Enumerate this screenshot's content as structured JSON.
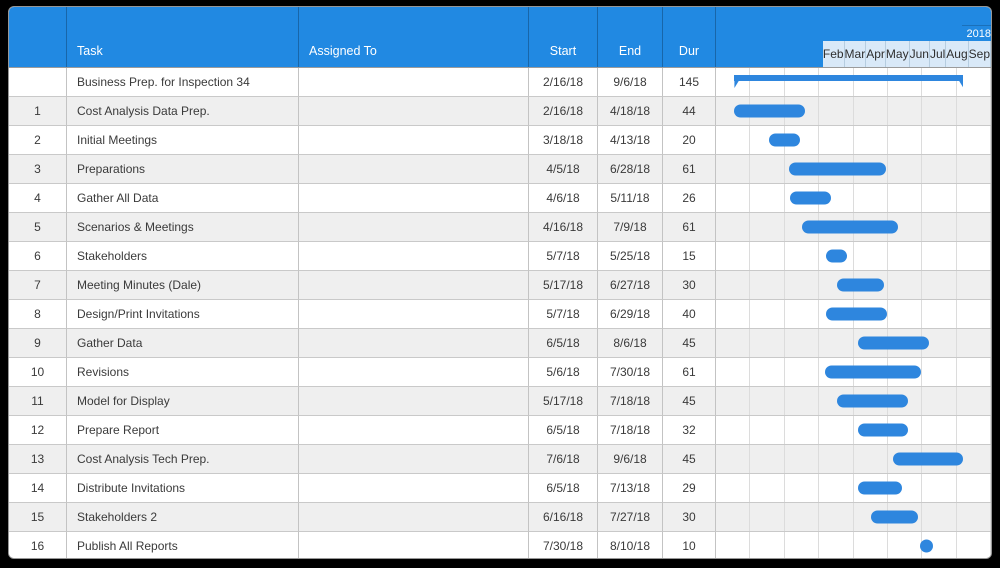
{
  "colors": {
    "header_blue": "#2189e2",
    "month_row_blue": "#d9e9f8",
    "bar_blue": "#2e86de",
    "alt_row_gray": "#efefef",
    "frame_black": "#000000"
  },
  "header": {
    "columns": {
      "num": "",
      "task": "Task",
      "assigned": "Assigned To",
      "start": "Start",
      "end": "End",
      "dur": "Dur"
    },
    "timeline": {
      "year": "2018",
      "months": [
        "Feb",
        "Mar",
        "Apr",
        "May",
        "Jun",
        "Jul",
        "Aug",
        "Sep"
      ]
    }
  },
  "chart_data": {
    "type": "gantt",
    "title": "Business Prep. for Inspection 34",
    "year": 2018,
    "timeline_months": [
      "Feb",
      "Mar",
      "Apr",
      "May",
      "Jun",
      "Jul",
      "Aug",
      "Sep"
    ],
    "tasks": [
      {
        "num": "",
        "task": "Business Prep. for Inspection 34",
        "assigned": "",
        "start": "2/16/18",
        "end": "9/6/18",
        "dur": "145",
        "kind": "summary"
      },
      {
        "num": "1",
        "task": "Cost Analysis Data Prep.",
        "assigned": "",
        "start": "2/16/18",
        "end": "4/18/18",
        "dur": "44",
        "kind": "task"
      },
      {
        "num": "2",
        "task": "Initial Meetings",
        "assigned": "",
        "start": "3/18/18",
        "end": "4/13/18",
        "dur": "20",
        "kind": "task"
      },
      {
        "num": "3",
        "task": "Preparations",
        "assigned": "",
        "start": "4/5/18",
        "end": "6/28/18",
        "dur": "61",
        "kind": "task"
      },
      {
        "num": "4",
        "task": "Gather All Data",
        "assigned": "",
        "start": "4/6/18",
        "end": "5/11/18",
        "dur": "26",
        "kind": "task"
      },
      {
        "num": "5",
        "task": "Scenarios & Meetings",
        "assigned": "",
        "start": "4/16/18",
        "end": "7/9/18",
        "dur": "61",
        "kind": "task"
      },
      {
        "num": "6",
        "task": "Stakeholders",
        "assigned": "",
        "start": "5/7/18",
        "end": "5/25/18",
        "dur": "15",
        "kind": "task"
      },
      {
        "num": "7",
        "task": "Meeting Minutes (Dale)",
        "assigned": "",
        "start": "5/17/18",
        "end": "6/27/18",
        "dur": "30",
        "kind": "task"
      },
      {
        "num": "8",
        "task": "Design/Print Invitations",
        "assigned": "",
        "start": "5/7/18",
        "end": "6/29/18",
        "dur": "40",
        "kind": "task"
      },
      {
        "num": "9",
        "task": "Gather Data",
        "assigned": "",
        "start": "6/5/18",
        "end": "8/6/18",
        "dur": "45",
        "kind": "task"
      },
      {
        "num": "10",
        "task": "Revisions",
        "assigned": "",
        "start": "5/6/18",
        "end": "7/30/18",
        "dur": "61",
        "kind": "task"
      },
      {
        "num": "11",
        "task": "Model for Display",
        "assigned": "",
        "start": "5/17/18",
        "end": "7/18/18",
        "dur": "45",
        "kind": "task"
      },
      {
        "num": "12",
        "task": "Prepare Report",
        "assigned": "",
        "start": "6/5/18",
        "end": "7/18/18",
        "dur": "32",
        "kind": "task"
      },
      {
        "num": "13",
        "task": "Cost Analysis Tech Prep.",
        "assigned": "",
        "start": "7/6/18",
        "end": "9/6/18",
        "dur": "45",
        "kind": "task"
      },
      {
        "num": "14",
        "task": "Distribute Invitations",
        "assigned": "",
        "start": "6/5/18",
        "end": "7/13/18",
        "dur": "29",
        "kind": "task"
      },
      {
        "num": "15",
        "task": "Stakeholders 2",
        "assigned": "",
        "start": "6/16/18",
        "end": "7/27/18",
        "dur": "30",
        "kind": "task"
      },
      {
        "num": "16",
        "task": "Publish All Reports",
        "assigned": "",
        "start": "7/30/18",
        "end": "8/10/18",
        "dur": "10",
        "kind": "task"
      }
    ]
  }
}
